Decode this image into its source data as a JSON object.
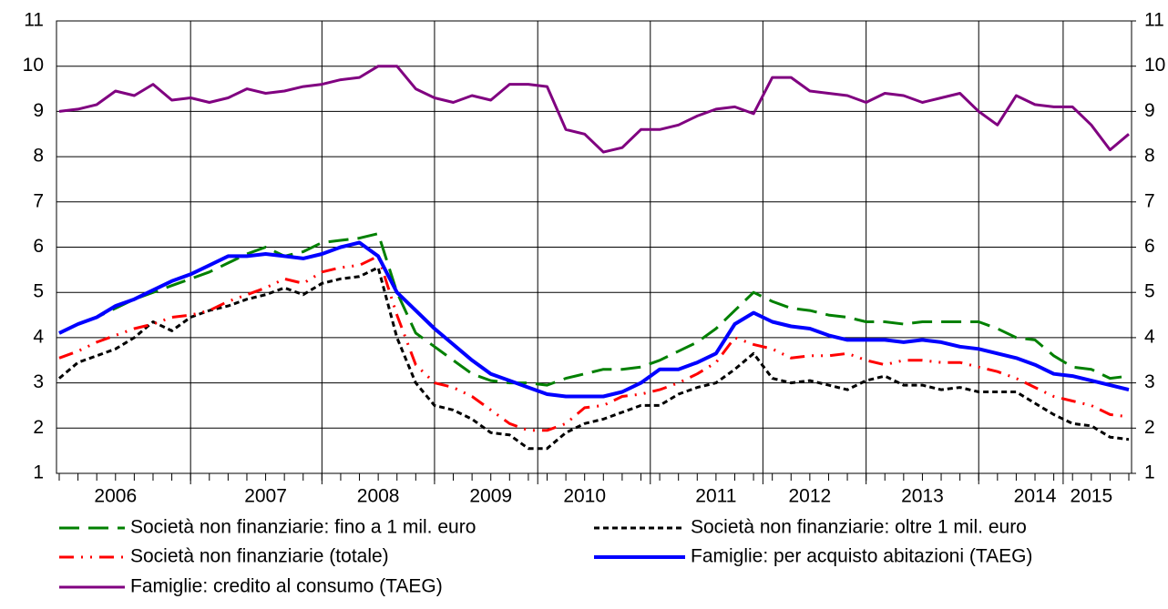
{
  "chart_data": {
    "type": "line",
    "categories": [
      null,
      null,
      null,
      "2006",
      null,
      null,
      null,
      null,
      null,
      null,
      null,
      "2007",
      null,
      null,
      null,
      null,
      null,
      "2008",
      null,
      null,
      null,
      null,
      null,
      "2009",
      null,
      null,
      null,
      null,
      "2010",
      null,
      null,
      null,
      null,
      null,
      null,
      "2011",
      null,
      null,
      null,
      null,
      "2012",
      null,
      null,
      null,
      null,
      null,
      "2013",
      null,
      null,
      null,
      null,
      null,
      "2014",
      null,
      null,
      "2015",
      null,
      null
    ],
    "ylim": [
      1,
      11
    ],
    "yticks": [
      1,
      2,
      3,
      4,
      5,
      6,
      7,
      8,
      9,
      10,
      11
    ],
    "y2lim": [
      1,
      11
    ],
    "y2ticks": [
      1,
      2,
      3,
      4,
      5,
      6,
      7,
      8,
      9,
      10,
      11
    ],
    "grid": true,
    "series": [
      {
        "name": "Società non finanziarie: fino a 1 mil. euro",
        "color": "#008000",
        "style": "dashed",
        "values": [
          4.1,
          4.3,
          4.45,
          4.65,
          4.85,
          5.0,
          5.15,
          5.3,
          5.45,
          5.65,
          5.85,
          6.0,
          5.8,
          5.9,
          6.1,
          6.15,
          6.2,
          6.3,
          5.0,
          4.1,
          3.8,
          3.5,
          3.2,
          3.05,
          3.0,
          3.0,
          2.95,
          3.1,
          3.2,
          3.3,
          3.3,
          3.35,
          3.5,
          3.7,
          3.9,
          4.2,
          4.6,
          5.0,
          4.8,
          4.65,
          4.6,
          4.5,
          4.45,
          4.35,
          4.35,
          4.3,
          4.35,
          4.35,
          4.35,
          4.35,
          4.2,
          4.0,
          3.95,
          3.6,
          3.35,
          3.3,
          3.1,
          3.15
        ]
      },
      {
        "name": "Società non finanziarie: oltre 1 mil. euro",
        "color": "#000000",
        "style": "dotted",
        "values": [
          3.1,
          3.45,
          3.6,
          3.75,
          4.0,
          4.35,
          4.15,
          4.45,
          4.6,
          4.7,
          4.85,
          4.95,
          5.1,
          4.95,
          5.2,
          5.3,
          5.35,
          5.55,
          4.0,
          3.0,
          2.5,
          2.4,
          2.2,
          1.9,
          1.85,
          1.55,
          1.55,
          1.9,
          2.1,
          2.2,
          2.35,
          2.5,
          2.5,
          2.75,
          2.9,
          3.0,
          3.3,
          3.65,
          3.1,
          3.0,
          3.05,
          2.95,
          2.85,
          3.05,
          3.15,
          2.95,
          2.95,
          2.85,
          2.9,
          2.8,
          2.8,
          2.8,
          2.55,
          2.3,
          2.1,
          2.05,
          1.8,
          1.75
        ]
      },
      {
        "name": "Società non finanziarie (totale)",
        "color": "#ff0000",
        "style": "dashdot",
        "values": [
          3.55,
          3.7,
          3.9,
          4.05,
          4.2,
          4.3,
          4.45,
          4.5,
          4.6,
          4.8,
          4.95,
          5.1,
          5.3,
          5.2,
          5.45,
          5.55,
          5.6,
          5.8,
          4.5,
          3.4,
          3.0,
          2.9,
          2.7,
          2.4,
          2.1,
          1.95,
          1.95,
          2.1,
          2.45,
          2.5,
          2.7,
          2.75,
          2.85,
          3.0,
          3.2,
          3.45,
          4.0,
          3.85,
          3.75,
          3.55,
          3.6,
          3.6,
          3.65,
          3.5,
          3.4,
          3.5,
          3.5,
          3.45,
          3.45,
          3.35,
          3.25,
          3.1,
          2.9,
          2.7,
          2.6,
          2.5,
          2.3,
          2.25
        ]
      },
      {
        "name": "Famiglie: per acquisto abitazioni (TAEG)",
        "color": "#0000ff",
        "style": "solid",
        "values": [
          4.1,
          4.3,
          4.45,
          4.7,
          4.85,
          5.05,
          5.25,
          5.4,
          5.6,
          5.8,
          5.8,
          5.85,
          5.8,
          5.75,
          5.85,
          6.0,
          6.1,
          5.8,
          5.0,
          4.6,
          4.2,
          3.85,
          3.5,
          3.2,
          3.05,
          2.9,
          2.75,
          2.7,
          2.7,
          2.7,
          2.8,
          3.0,
          3.3,
          3.3,
          3.45,
          3.65,
          4.3,
          4.55,
          4.35,
          4.25,
          4.2,
          4.05,
          3.95,
          3.95,
          3.95,
          3.9,
          3.95,
          3.9,
          3.8,
          3.75,
          3.65,
          3.55,
          3.4,
          3.2,
          3.15,
          3.05,
          2.95,
          2.85
        ]
      },
      {
        "name": "Famiglie: credito al consumo (TAEG)",
        "color": "#800080",
        "style": "solid",
        "axis": "y2",
        "values": [
          9.0,
          9.05,
          9.15,
          9.45,
          9.35,
          9.6,
          9.25,
          9.3,
          9.2,
          9.3,
          9.5,
          9.4,
          9.45,
          9.55,
          9.6,
          9.7,
          9.75,
          10.0,
          10.0,
          9.5,
          9.3,
          9.2,
          9.35,
          9.25,
          9.6,
          9.6,
          9.55,
          8.6,
          8.5,
          8.1,
          8.2,
          8.6,
          8.6,
          8.7,
          8.9,
          9.05,
          9.1,
          8.95,
          9.75,
          9.75,
          9.45,
          9.4,
          9.35,
          9.2,
          9.4,
          9.35,
          9.2,
          9.3,
          9.4,
          9.0,
          8.7,
          9.35,
          9.15,
          9.1,
          9.1,
          8.7,
          8.15,
          8.5
        ]
      }
    ]
  }
}
